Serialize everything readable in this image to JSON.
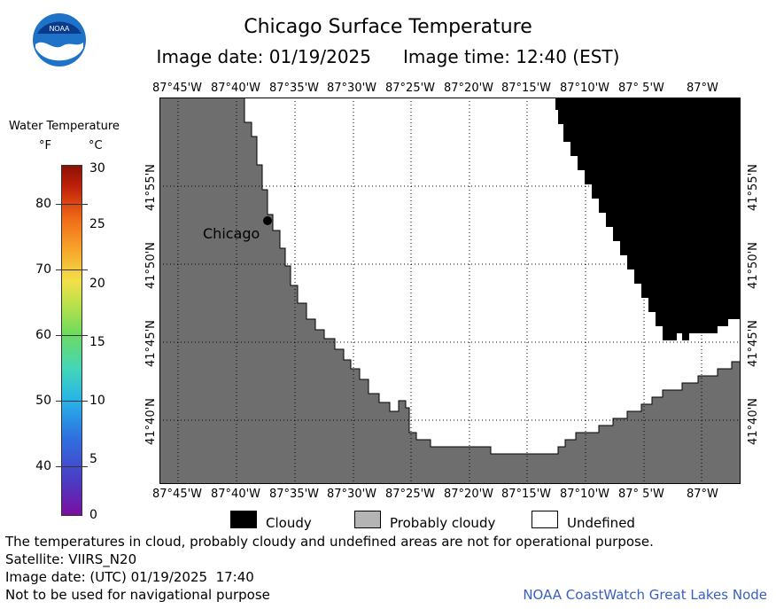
{
  "header": {
    "title": "Chicago Surface Temperature",
    "image_date": "Image date: 01/19/2025",
    "image_time": "Image time: 12:40 (EST)"
  },
  "logo": {
    "text": "NOAA"
  },
  "colorbar": {
    "title": "Water Temperature",
    "f_unit": "°F",
    "c_unit": "°C",
    "f_ticks": [
      "80",
      "70",
      "60",
      "50",
      "40"
    ],
    "c_ticks": [
      "30",
      "25",
      "20",
      "15",
      "10",
      "5",
      "0"
    ]
  },
  "map": {
    "lon_labels": [
      "87°45'W",
      "87°40'W",
      "87°35'W",
      "87°30'W",
      "87°25'W",
      "87°20'W",
      "87°15'W",
      "87°10'W",
      "87° 5'W",
      "87°W"
    ],
    "lat_labels": [
      "41°55'N",
      "41°50'N",
      "41°45'N",
      "41°40'N"
    ],
    "city_label": "Chicago",
    "colors": {
      "land": "#6e6e6e",
      "cloudy": "#000000",
      "undefined": "#ffffff",
      "probably_cloudy": "#b4b4b4"
    }
  },
  "legend": {
    "cloudy": "Cloudy",
    "probably_cloudy": "Probably cloudy",
    "undefined": "Undefined"
  },
  "notes": {
    "disclaimer": "The temperatures in cloud, probably cloudy and undefined areas are not for operational purpose.",
    "satellite": "Satellite: VIIRS_N20",
    "utc_date": "Image date: (UTC) 01/19/2025  17:40",
    "navigation": "Not to be used for navigational purpose",
    "credit": "NOAA CoastWatch Great Lakes Node"
  }
}
